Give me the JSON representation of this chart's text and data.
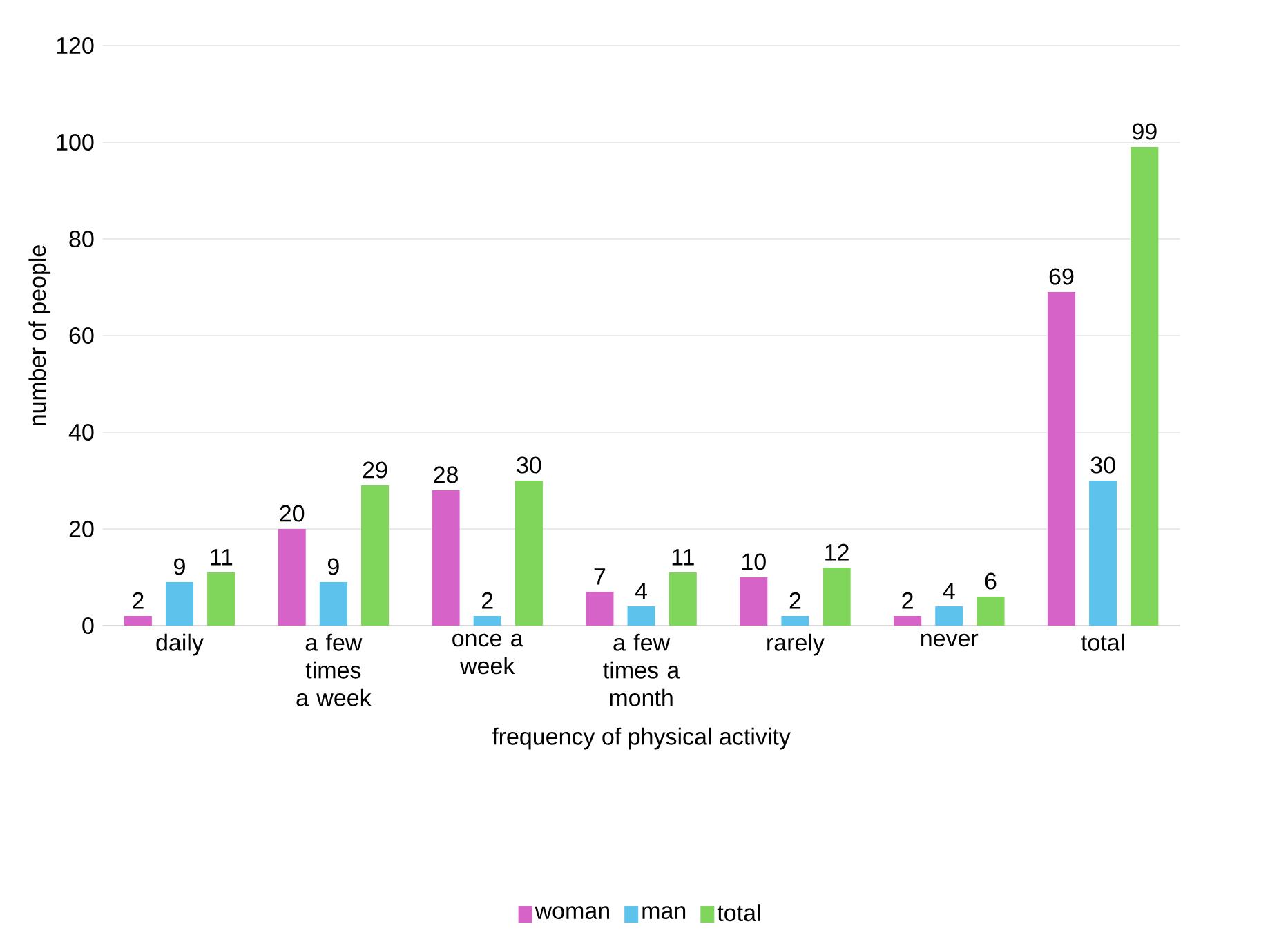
{
  "chart_data": {
    "type": "bar",
    "xlabel": "frequency of physical activity",
    "ylabel": "number of people",
    "categories": [
      "daily",
      "a few times a week",
      "once a week",
      "a few times a month",
      "rarely",
      "never",
      "total"
    ],
    "series": [
      {
        "name": "woman",
        "color": "#d663c8",
        "values": [
          2,
          20,
          28,
          7,
          10,
          2,
          69
        ]
      },
      {
        "name": "man",
        "color": "#5ec3ec",
        "values": [
          9,
          9,
          2,
          4,
          2,
          4,
          30
        ]
      },
      {
        "name": "total",
        "color": "#80d65a",
        "values": [
          11,
          29,
          30,
          11,
          12,
          6,
          99
        ]
      }
    ],
    "ylim": [
      0,
      120
    ],
    "yticks": [
      0,
      20,
      40,
      60,
      80,
      100,
      120
    ],
    "grid": "y",
    "legend": "bottom",
    "data_labels": true
  }
}
